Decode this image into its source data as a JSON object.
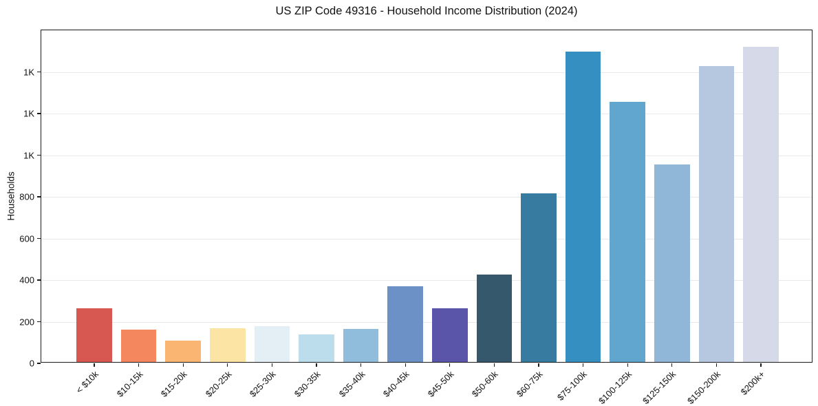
{
  "title": "US ZIP Code 49316 - Household Income Distribution (2024)",
  "chart_data": {
    "type": "bar",
    "title": "US ZIP Code 49316 - Household Income Distribution (2024)",
    "xlabel": "",
    "ylabel": "Households",
    "ylim": [
      0,
      1600
    ],
    "grid": "horizontal",
    "legend": "none",
    "categories": [
      "< $10k",
      "$10-15k",
      "$15-20k",
      "$20-25k",
      "$25-30k",
      "$30-35k",
      "$35-40k",
      "$40-45k",
      "$45-50k",
      "$50-60k",
      "$60-75k",
      "$75-100k",
      "$100-125k",
      "$125-150k",
      "$150-200k",
      "$200k+"
    ],
    "values": [
      258,
      155,
      104,
      161,
      172,
      131,
      158,
      365,
      258,
      420,
      810,
      1490,
      1250,
      950,
      1420,
      1515
    ],
    "bar_colors": [
      "#d65850",
      "#f5875f",
      "#f9b571",
      "#fce4a4",
      "#e3eff5",
      "#bcdeec",
      "#90bddb",
      "#6b91c6",
      "#5a55a8",
      "#36586d",
      "#377ba1",
      "#368fc1",
      "#60a6cf",
      "#90b7d8",
      "#b6c8df",
      "#d6d9e7"
    ],
    "yticks": [
      {
        "value": 0,
        "label": "0"
      },
      {
        "value": 200,
        "label": "200"
      },
      {
        "value": 400,
        "label": "400"
      },
      {
        "value": 600,
        "label": "600"
      },
      {
        "value": 800,
        "label": "800"
      },
      {
        "value": 1000,
        "label": "1K"
      },
      {
        "value": 1200,
        "label": "1K"
      },
      {
        "value": 1400,
        "label": "1K"
      }
    ]
  },
  "colors": {
    "background": "#ffffff",
    "spine": "#1a1a1a",
    "grid": "#e9e9e9",
    "text": "#111111"
  }
}
